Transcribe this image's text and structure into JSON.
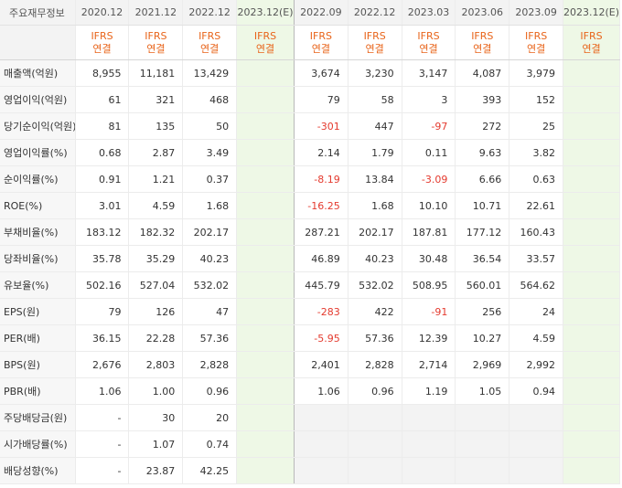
{
  "header": {
    "row_title": "주요재무정보",
    "annual_periods": [
      "2020.12",
      "2021.12",
      "2022.12",
      "2023.12(E)"
    ],
    "quarter_periods": [
      "2022.09",
      "2022.12",
      "2023.03",
      "2023.06",
      "2023.09",
      "2023.12(E)"
    ],
    "standard_top": "IFRS",
    "standard_bottom": "연결"
  },
  "rows": [
    {
      "label": "매출액(억원)",
      "annual": [
        "8,955",
        "11,181",
        "13,429",
        ""
      ],
      "quarter": [
        "3,674",
        "3,230",
        "3,147",
        "4,087",
        "3,979",
        ""
      ]
    },
    {
      "label": "영업이익(억원)",
      "annual": [
        "61",
        "321",
        "468",
        ""
      ],
      "quarter": [
        "79",
        "58",
        "3",
        "393",
        "152",
        ""
      ]
    },
    {
      "label": "당기순이익(억원)",
      "annual": [
        "81",
        "135",
        "50",
        ""
      ],
      "quarter": [
        "-301",
        "447",
        "-97",
        "272",
        "25",
        ""
      ]
    },
    {
      "label": "영업이익률(%)",
      "annual": [
        "0.68",
        "2.87",
        "3.49",
        ""
      ],
      "quarter": [
        "2.14",
        "1.79",
        "0.11",
        "9.63",
        "3.82",
        ""
      ]
    },
    {
      "label": "순이익률(%)",
      "annual": [
        "0.91",
        "1.21",
        "0.37",
        ""
      ],
      "quarter": [
        "-8.19",
        "13.84",
        "-3.09",
        "6.66",
        "0.63",
        ""
      ]
    },
    {
      "label": "ROE(%)",
      "annual": [
        "3.01",
        "4.59",
        "1.68",
        ""
      ],
      "quarter": [
        "-16.25",
        "1.68",
        "10.10",
        "10.71",
        "22.61",
        ""
      ]
    },
    {
      "label": "부채비율(%)",
      "annual": [
        "183.12",
        "182.32",
        "202.17",
        ""
      ],
      "quarter": [
        "287.21",
        "202.17",
        "187.81",
        "177.12",
        "160.43",
        ""
      ]
    },
    {
      "label": "당좌비율(%)",
      "annual": [
        "35.78",
        "35.29",
        "40.23",
        ""
      ],
      "quarter": [
        "46.89",
        "40.23",
        "30.48",
        "36.54",
        "33.57",
        ""
      ]
    },
    {
      "label": "유보율(%)",
      "annual": [
        "502.16",
        "527.04",
        "532.02",
        ""
      ],
      "quarter": [
        "445.79",
        "532.02",
        "508.95",
        "560.01",
        "564.62",
        ""
      ]
    },
    {
      "label": "EPS(원)",
      "annual": [
        "79",
        "126",
        "47",
        ""
      ],
      "quarter": [
        "-283",
        "422",
        "-91",
        "256",
        "24",
        ""
      ]
    },
    {
      "label": "PER(배)",
      "annual": [
        "36.15",
        "22.28",
        "57.36",
        ""
      ],
      "quarter": [
        "-5.95",
        "57.36",
        "12.39",
        "10.27",
        "4.59",
        ""
      ]
    },
    {
      "label": "BPS(원)",
      "annual": [
        "2,676",
        "2,803",
        "2,828",
        ""
      ],
      "quarter": [
        "2,401",
        "2,828",
        "2,714",
        "2,969",
        "2,992",
        ""
      ]
    },
    {
      "label": "PBR(배)",
      "annual": [
        "1.06",
        "1.00",
        "0.96",
        ""
      ],
      "quarter": [
        "1.06",
        "0.96",
        "1.19",
        "1.05",
        "0.94",
        ""
      ]
    },
    {
      "label": "주당배당금(원)",
      "annual": [
        "-",
        "30",
        "20",
        ""
      ],
      "quarter": [
        "",
        "",
        "",
        "",
        "",
        ""
      ]
    },
    {
      "label": "시가배당률(%)",
      "annual": [
        "-",
        "1.07",
        "0.74",
        ""
      ],
      "quarter": [
        "",
        "",
        "",
        "",
        "",
        ""
      ]
    },
    {
      "label": "배당성향(%)",
      "annual": [
        "-",
        "23.87",
        "42.25",
        ""
      ],
      "quarter": [
        "",
        "",
        "",
        "",
        "",
        ""
      ]
    }
  ]
}
